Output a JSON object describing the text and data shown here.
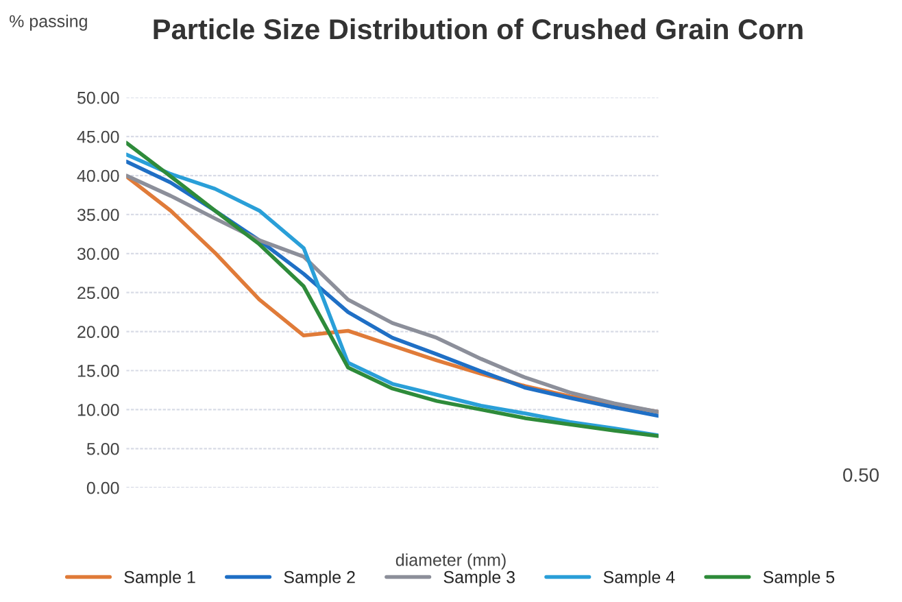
{
  "chart_data": {
    "type": "line",
    "title": "Particle Size Distribution of Crushed Grain Corn",
    "ylabel": "% passing",
    "xlabel": "diameter (mm)",
    "categories": [
      null,
      null,
      null,
      null,
      null,
      null,
      null,
      null,
      null,
      null,
      null,
      null,
      null
    ],
    "series": [
      {
        "name": "Sample 1",
        "color": "#e07b39",
        "values": [
          39.9,
          35.5,
          30.1,
          24.1,
          19.5,
          20.1,
          18.2,
          16.3,
          14.6,
          13.0,
          11.7,
          10.7,
          9.7
        ]
      },
      {
        "name": "Sample 2",
        "color": "#1f6fc5",
        "values": [
          41.8,
          39.1,
          35.5,
          31.7,
          27.4,
          22.5,
          19.2,
          17.1,
          14.9,
          12.8,
          11.5,
          10.3,
          9.2
        ]
      },
      {
        "name": "Sample 3",
        "color": "#8c8f9a",
        "values": [
          40.0,
          37.4,
          34.5,
          31.7,
          29.6,
          24.1,
          21.1,
          19.2,
          16.5,
          14.1,
          12.2,
          10.8,
          9.7
        ]
      },
      {
        "name": "Sample 4",
        "color": "#2a9fd8",
        "values": [
          42.7,
          40.2,
          38.3,
          35.5,
          30.7,
          16.0,
          13.3,
          11.9,
          10.5,
          9.5,
          8.4,
          7.6,
          6.7
        ]
      },
      {
        "name": "Sample 5",
        "color": "#2e8b3a",
        "values": [
          44.2,
          39.9,
          35.5,
          31.2,
          25.8,
          15.4,
          12.7,
          11.1,
          10.0,
          8.9,
          8.1,
          7.3,
          6.6
        ]
      }
    ],
    "ylim": [
      0,
      50
    ],
    "yticks": [
      {
        "value": 0,
        "label": "0.00"
      },
      {
        "value": 5,
        "label": "5.00"
      },
      {
        "value": 10,
        "label": "10.00"
      },
      {
        "value": 15,
        "label": "15.00"
      },
      {
        "value": 20,
        "label": "20.00"
      },
      {
        "value": 25,
        "label": "25.00"
      },
      {
        "value": 30,
        "label": "30.00"
      },
      {
        "value": 35,
        "label": "35.00"
      },
      {
        "value": 40,
        "label": "40.00"
      },
      {
        "value": 45,
        "label": "45.00"
      },
      {
        "value": 50,
        "label": "50.00"
      }
    ],
    "annotations": [
      "0.50"
    ],
    "grid": "y",
    "legend": "bottom",
    "marker": "none",
    "line_style": "solid"
  }
}
